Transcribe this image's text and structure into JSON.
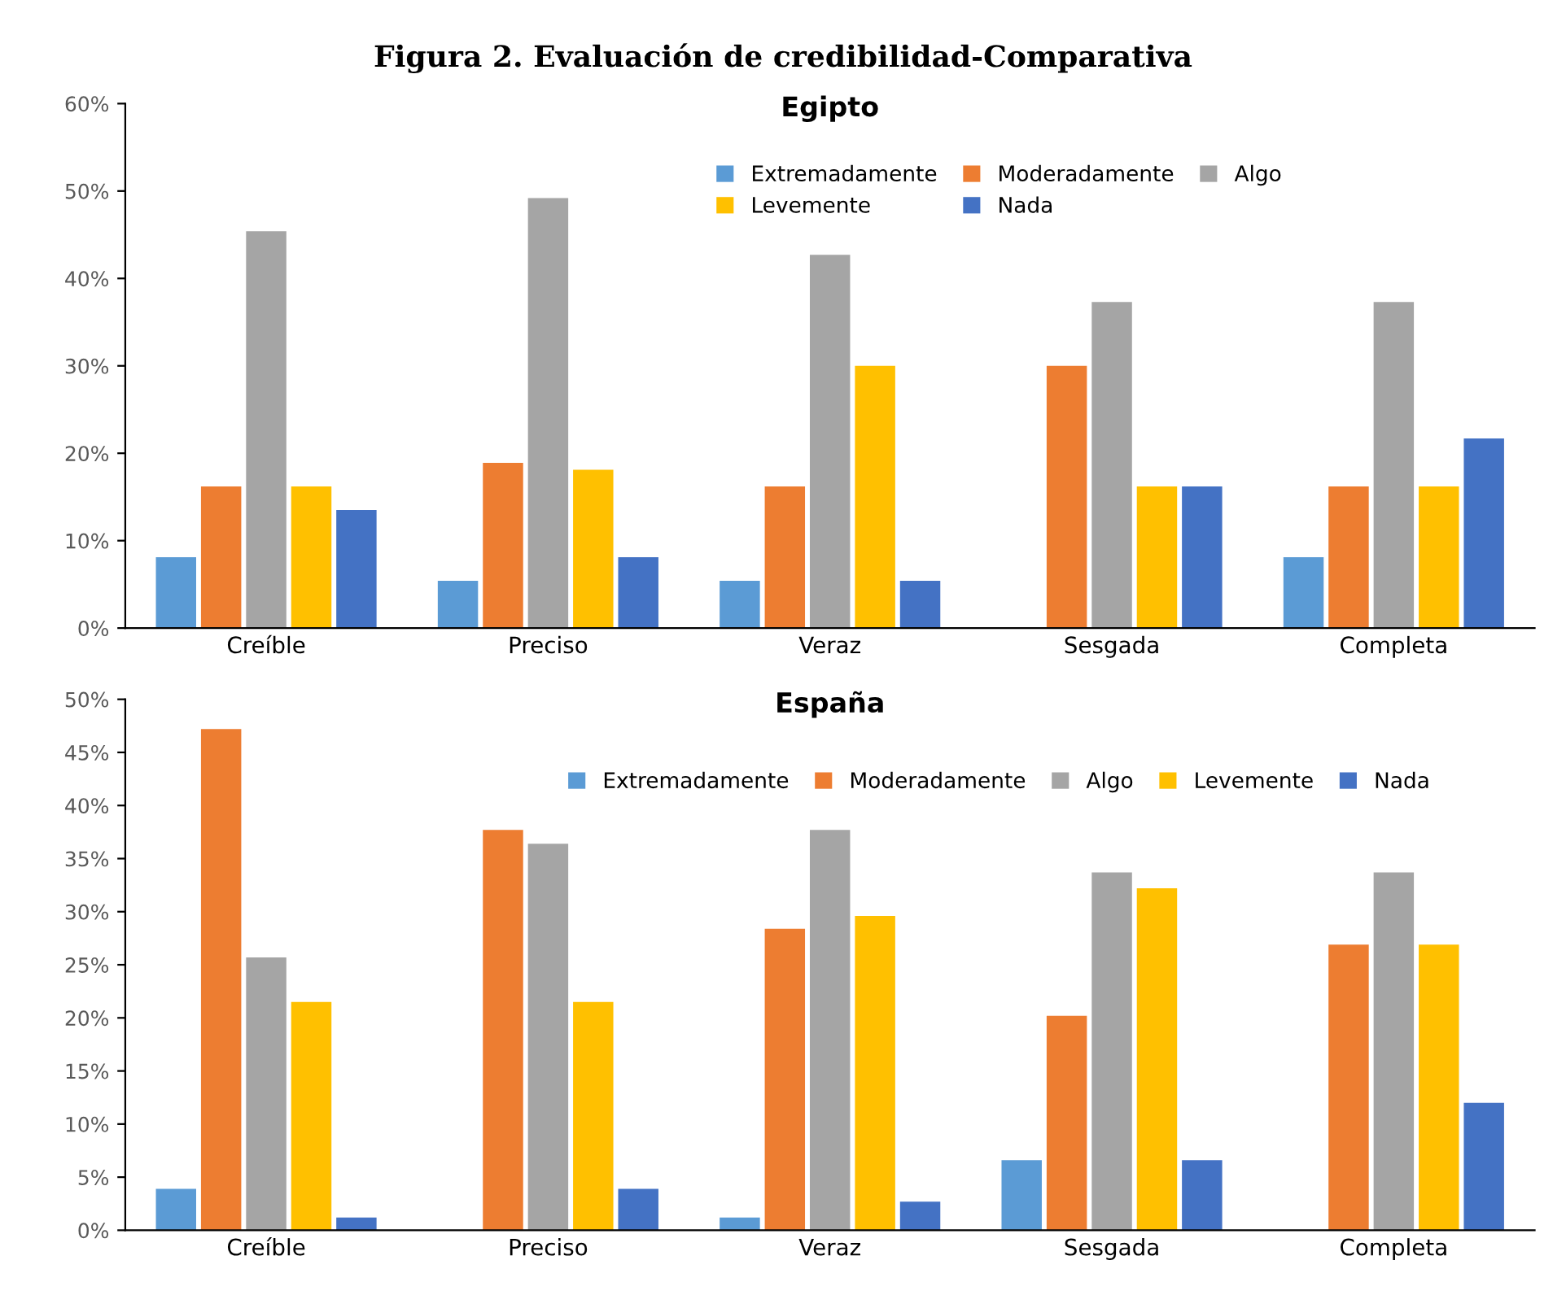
{
  "chart_data": [
    {
      "type": "bar",
      "title": "Egipto",
      "annotations": [
        "Figura 2. Evaluación de credibilidad-Comparativa"
      ],
      "categories": [
        "Creíble",
        "Preciso",
        "Veraz",
        "Sesgada",
        "Completa"
      ],
      "series": [
        {
          "name": "Extremadamente",
          "color": "#5b9bd5",
          "values": [
            8.1,
            5.4,
            5.4,
            0,
            8.1
          ]
        },
        {
          "name": "Moderadamente",
          "color": "#ed7d31",
          "values": [
            16.2,
            18.9,
            16.2,
            30.0,
            16.2
          ]
        },
        {
          "name": "Algo",
          "color": "#a5a5a5",
          "values": [
            45.4,
            49.2,
            42.7,
            37.3,
            37.3
          ]
        },
        {
          "name": "Levemente",
          "color": "#ffc000",
          "values": [
            16.2,
            18.1,
            30.0,
            16.2,
            16.2
          ]
        },
        {
          "name": "Nada",
          "color": "#4472c4",
          "values": [
            13.5,
            8.1,
            5.4,
            16.2,
            21.7
          ]
        }
      ],
      "ylim": [
        0,
        60
      ],
      "yticks": [
        {
          "value": 0,
          "label": "0%"
        },
        {
          "value": 10,
          "label": "10%"
        },
        {
          "value": 20,
          "label": "20%"
        },
        {
          "value": 30,
          "label": "30%"
        },
        {
          "value": 40,
          "label": "40%"
        },
        {
          "value": 50,
          "label": "50%"
        },
        {
          "value": 60,
          "label": "60%"
        }
      ],
      "grid": false,
      "legend": "top"
    },
    {
      "type": "bar",
      "title": "España",
      "categories": [
        "Creíble",
        "Preciso",
        "Veraz",
        "Sesgada",
        "Completa"
      ],
      "series": [
        {
          "name": "Extremadamente",
          "color": "#5b9bd5",
          "values": [
            3.9,
            0,
            1.2,
            6.6,
            0
          ]
        },
        {
          "name": "Moderadamente",
          "color": "#ed7d31",
          "values": [
            47.2,
            37.7,
            28.4,
            20.2,
            26.9
          ]
        },
        {
          "name": "Algo",
          "color": "#a5a5a5",
          "values": [
            25.7,
            36.4,
            37.7,
            33.7,
            33.7
          ]
        },
        {
          "name": "Levemente",
          "color": "#ffc000",
          "values": [
            21.5,
            21.5,
            29.6,
            32.2,
            26.9
          ]
        },
        {
          "name": "Nada",
          "color": "#4472c4",
          "values": [
            1.2,
            3.9,
            2.7,
            6.6,
            12.0
          ]
        }
      ],
      "ylim": [
        0,
        50
      ],
      "yticks": [
        {
          "value": 0,
          "label": "0%"
        },
        {
          "value": 5,
          "label": "5%"
        },
        {
          "value": 10,
          "label": "10%"
        },
        {
          "value": 15,
          "label": "15%"
        },
        {
          "value": 20,
          "label": "20%"
        },
        {
          "value": 25,
          "label": "25%"
        },
        {
          "value": 30,
          "label": "30%"
        },
        {
          "value": 35,
          "label": "35%"
        },
        {
          "value": 40,
          "label": "40%"
        },
        {
          "value": 45,
          "label": "45%"
        },
        {
          "value": 50,
          "label": "50%"
        }
      ],
      "grid": false,
      "legend": "top"
    }
  ]
}
